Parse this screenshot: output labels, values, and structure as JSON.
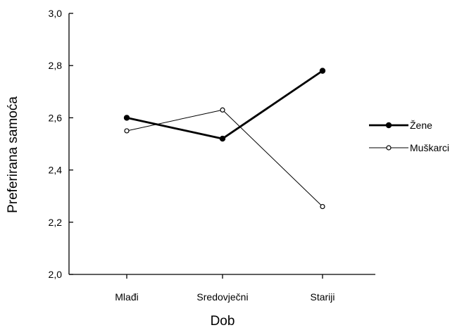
{
  "chart_data": {
    "type": "line",
    "title": "",
    "xlabel": "Dob",
    "ylabel": "Preferirana samoća",
    "categories": [
      "Mlađi",
      "Sredovječni",
      "Stariji"
    ],
    "ylim": [
      2.0,
      3.0
    ],
    "yticks": [
      2.0,
      2.2,
      2.4,
      2.6,
      2.8,
      3.0
    ],
    "ytick_labels": [
      "2,0",
      "2,2",
      "2,4",
      "2,6",
      "2,8",
      "3,0"
    ],
    "grid": false,
    "legend_position": "right",
    "series": [
      {
        "name": "Žene",
        "values": [
          2.6,
          2.52,
          2.78
        ],
        "color": "#000000",
        "marker": "filled-circle",
        "line": "thick"
      },
      {
        "name": "Muškarci",
        "values": [
          2.55,
          2.63,
          2.26
        ],
        "color": "#000000",
        "marker": "open-circle",
        "line": "thin"
      }
    ]
  }
}
